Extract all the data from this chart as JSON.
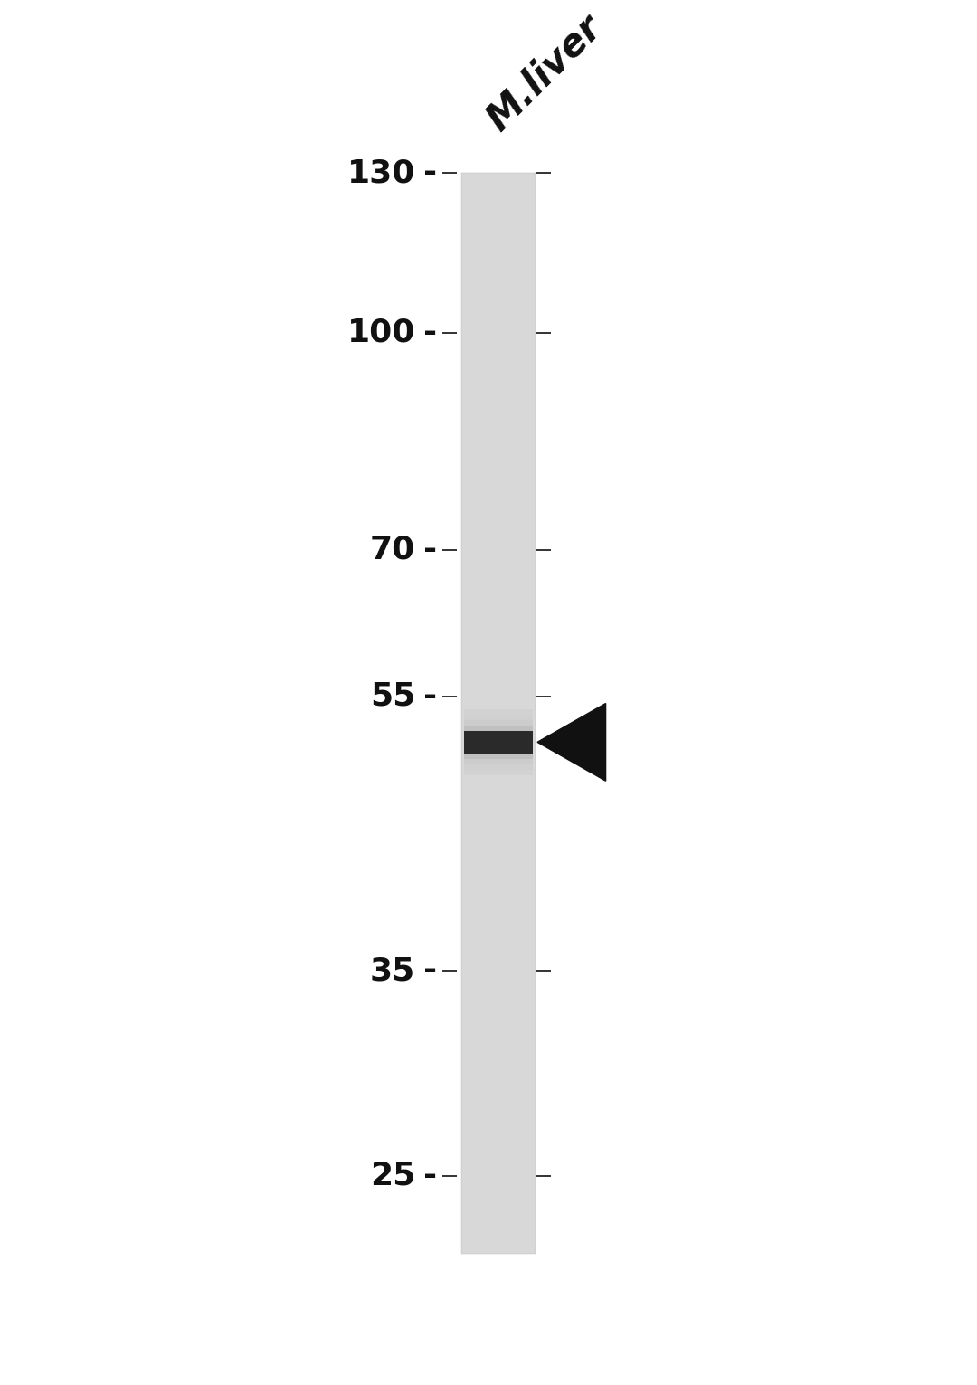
{
  "background_color": "#ffffff",
  "lane_label": "M.liver",
  "lane_label_rotation": 45,
  "lane_label_fontsize": 30,
  "lane_label_style": "italic",
  "lane_color": "#d8d8d8",
  "mw_markers": [
    130,
    100,
    70,
    55,
    35,
    25
  ],
  "mw_marker_fontsize": 26,
  "band_mw": 51,
  "band_color": "#2a2a2a",
  "arrow_color": "#111111",
  "tick_color": "#111111",
  "label_color": "#111111",
  "fig_width": 10.8,
  "fig_height": 15.31
}
